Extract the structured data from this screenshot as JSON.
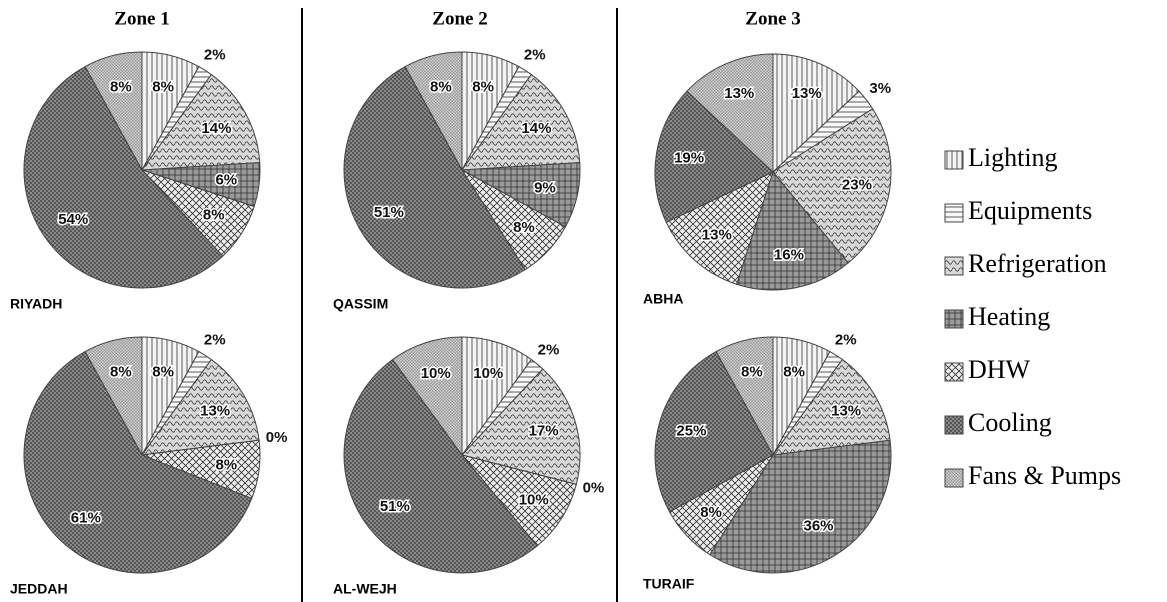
{
  "zones": [
    "Zone 1",
    "Zone 2",
    "Zone 3"
  ],
  "chart_data": [
    {
      "type": "pie",
      "title": "RIYADH",
      "categories": [
        "Lighting",
        "Equipments",
        "Refrigeration",
        "Heating",
        "DHW",
        "Cooling",
        "Fans & Pumps"
      ],
      "values": [
        8,
        2,
        14,
        6,
        8,
        54,
        8
      ],
      "value_labels": [
        "8%",
        "2%",
        "14%",
        "6%",
        "8%",
        "54%",
        "8%"
      ],
      "colors": [
        "#f4f4f4",
        "#f8f8f8",
        "#d8d8d8",
        "#9a9a9a",
        "#eeeeee",
        "#8a8a8a",
        "#d0d0d0"
      ]
    },
    {
      "type": "pie",
      "title": "QASSIM",
      "categories": [
        "Lighting",
        "Equipments",
        "Refrigeration",
        "Heating",
        "DHW",
        "Cooling",
        "Fans & Pumps"
      ],
      "values": [
        8,
        2,
        14,
        9,
        8,
        51,
        8
      ],
      "value_labels": [
        "8%",
        "2%",
        "14%",
        "9%",
        "8%",
        "51%",
        "8%"
      ],
      "colors": [
        "#f4f4f4",
        "#f8f8f8",
        "#d8d8d8",
        "#9a9a9a",
        "#eeeeee",
        "#8a8a8a",
        "#d0d0d0"
      ]
    },
    {
      "type": "pie",
      "title": "ABHA",
      "categories": [
        "Lighting",
        "Equipments",
        "Refrigeration",
        "Heating",
        "DHW",
        "Cooling",
        "Fans & Pumps"
      ],
      "values": [
        13,
        3,
        23,
        16,
        13,
        19,
        13
      ],
      "value_labels": [
        "13%",
        "3%",
        "23%",
        "16%",
        "13%",
        "19%",
        "13%"
      ],
      "colors": [
        "#f4f4f4",
        "#f8f8f8",
        "#d8d8d8",
        "#9a9a9a",
        "#eeeeee",
        "#8a8a8a",
        "#d0d0d0"
      ]
    },
    {
      "type": "pie",
      "title": "JEDDAH",
      "categories": [
        "Lighting",
        "Equipments",
        "Refrigeration",
        "Heating",
        "DHW",
        "Cooling",
        "Fans & Pumps"
      ],
      "values": [
        8,
        2,
        13,
        0,
        8,
        61,
        8
      ],
      "value_labels": [
        "8%",
        "2%",
        "13%",
        "0%",
        "8%",
        "61%",
        "8%"
      ],
      "colors": [
        "#f4f4f4",
        "#f8f8f8",
        "#d8d8d8",
        "#9a9a9a",
        "#eeeeee",
        "#8a8a8a",
        "#d0d0d0"
      ]
    },
    {
      "type": "pie",
      "title": "AL-WEJH",
      "categories": [
        "Lighting",
        "Equipments",
        "Refrigeration",
        "Heating",
        "DHW",
        "Cooling",
        "Fans & Pumps"
      ],
      "values": [
        10,
        2,
        17,
        0,
        10,
        51,
        10
      ],
      "value_labels": [
        "10%",
        "2%",
        "17%",
        "0%",
        "10%",
        "51%",
        "10%"
      ],
      "colors": [
        "#f4f4f4",
        "#f8f8f8",
        "#d8d8d8",
        "#9a9a9a",
        "#eeeeee",
        "#8a8a8a",
        "#d0d0d0"
      ]
    },
    {
      "type": "pie",
      "title": "TURAIF",
      "categories": [
        "Lighting",
        "Equipments",
        "Refrigeration",
        "Heating",
        "DHW",
        "Cooling",
        "Fans & Pumps"
      ],
      "values": [
        8,
        2,
        13,
        36,
        8,
        25,
        8
      ],
      "value_labels": [
        "8%",
        "2%",
        "13%",
        "36%",
        "8%",
        "25%",
        "8%"
      ],
      "colors": [
        "#f4f4f4",
        "#f8f8f8",
        "#d8d8d8",
        "#9a9a9a",
        "#eeeeee",
        "#8a8a8a",
        "#d0d0d0"
      ]
    }
  ]
}
